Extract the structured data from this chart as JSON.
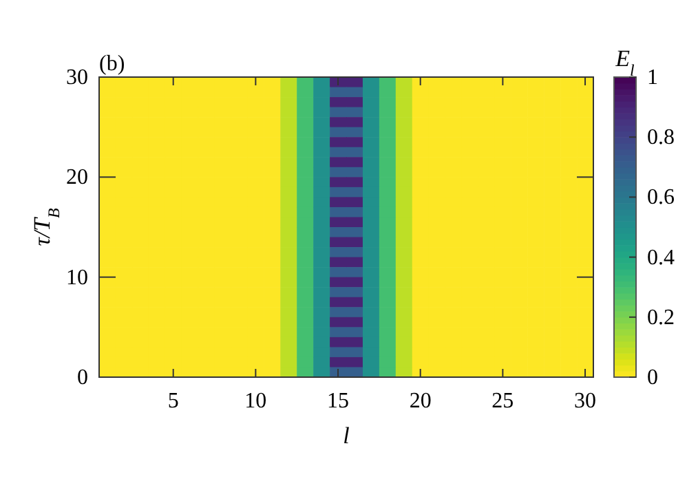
{
  "chart_data": {
    "type": "heatmap",
    "title": "(b)",
    "xlabel": "l",
    "ylabel": "τ/T$_{B}$",
    "clabel": "E$_{l}$",
    "categories": [
      null,
      null,
      null,
      null,
      "5",
      null,
      null,
      null,
      null,
      "10",
      null,
      null,
      null,
      null,
      "15",
      null,
      null,
      null,
      null,
      "20",
      null,
      null,
      null,
      null,
      "25",
      null,
      null,
      null,
      null,
      "30"
    ],
    "ylim": [
      0,
      30
    ],
    "yticks": [
      0,
      10,
      20,
      30
    ],
    "clim": [
      0,
      1
    ],
    "cticks": [
      0,
      0.2,
      0.4,
      0.6,
      0.8,
      1
    ],
    "cells": [
      [
        0,
        0,
        0,
        0,
        0,
        0,
        0,
        0,
        0,
        0,
        0,
        0.1,
        0.3,
        0.5,
        0.9,
        0.9,
        0.5,
        0.3,
        0.1,
        0,
        0,
        0,
        0,
        0,
        0,
        0,
        0,
        0,
        0,
        0
      ],
      [
        0,
        0,
        0,
        0,
        0,
        0,
        0,
        0,
        0,
        0,
        0,
        0.1,
        0.3,
        0.5,
        0.7,
        0.7,
        0.5,
        0.3,
        0.1,
        0,
        0,
        0,
        0,
        0,
        0,
        0,
        0,
        0,
        0,
        0
      ],
      [
        0,
        0,
        0,
        0,
        0,
        0,
        0,
        0,
        0,
        0,
        0,
        0.1,
        0.3,
        0.5,
        0.9,
        0.9,
        0.5,
        0.3,
        0.1,
        0,
        0,
        0,
        0,
        0,
        0,
        0,
        0,
        0,
        0,
        0
      ],
      [
        0,
        0,
        0,
        0,
        0,
        0,
        0,
        0,
        0,
        0,
        0,
        0.1,
        0.3,
        0.5,
        0.7,
        0.7,
        0.5,
        0.3,
        0.1,
        0,
        0,
        0,
        0,
        0,
        0,
        0,
        0,
        0,
        0,
        0
      ],
      [
        0,
        0,
        0,
        0,
        0,
        0,
        0,
        0,
        0,
        0,
        0,
        0.1,
        0.3,
        0.5,
        0.9,
        0.9,
        0.5,
        0.3,
        0.1,
        0,
        0,
        0,
        0,
        0,
        0,
        0,
        0,
        0,
        0,
        0
      ],
      [
        0,
        0,
        0,
        0,
        0,
        0,
        0,
        0,
        0,
        0,
        0,
        0.1,
        0.3,
        0.5,
        0.7,
        0.7,
        0.5,
        0.3,
        0.1,
        0,
        0,
        0,
        0,
        0,
        0,
        0,
        0,
        0,
        0,
        0
      ],
      [
        0,
        0,
        0,
        0,
        0,
        0,
        0,
        0,
        0,
        0,
        0,
        0.1,
        0.3,
        0.5,
        0.9,
        0.9,
        0.5,
        0.3,
        0.1,
        0,
        0,
        0,
        0,
        0,
        0,
        0,
        0,
        0,
        0,
        0
      ],
      [
        0,
        0,
        0,
        0,
        0,
        0,
        0,
        0,
        0,
        0,
        0,
        0.1,
        0.3,
        0.5,
        0.7,
        0.7,
        0.5,
        0.3,
        0.1,
        0,
        0,
        0,
        0,
        0,
        0,
        0,
        0,
        0,
        0,
        0
      ],
      [
        0,
        0,
        0,
        0,
        0,
        0,
        0,
        0,
        0,
        0,
        0,
        0.1,
        0.3,
        0.5,
        0.9,
        0.9,
        0.5,
        0.3,
        0.1,
        0,
        0,
        0,
        0,
        0,
        0,
        0,
        0,
        0,
        0,
        0
      ],
      [
        0,
        0,
        0,
        0,
        0,
        0,
        0,
        0,
        0,
        0,
        0,
        0.1,
        0.3,
        0.5,
        0.7,
        0.7,
        0.5,
        0.3,
        0.1,
        0,
        0,
        0,
        0,
        0,
        0,
        0,
        0,
        0,
        0,
        0
      ],
      [
        0,
        0,
        0,
        0,
        0,
        0,
        0,
        0,
        0,
        0,
        0,
        0.1,
        0.3,
        0.5,
        0.9,
        0.9,
        0.5,
        0.3,
        0.1,
        0,
        0,
        0,
        0,
        0,
        0,
        0,
        0,
        0,
        0,
        0
      ],
      [
        0,
        0,
        0,
        0,
        0,
        0,
        0,
        0,
        0,
        0,
        0,
        0.1,
        0.3,
        0.5,
        0.7,
        0.7,
        0.5,
        0.3,
        0.1,
        0,
        0,
        0,
        0,
        0,
        0,
        0,
        0,
        0,
        0,
        0
      ],
      [
        0,
        0,
        0,
        0,
        0,
        0,
        0,
        0,
        0,
        0,
        0,
        0.1,
        0.3,
        0.5,
        0.9,
        0.9,
        0.5,
        0.3,
        0.1,
        0,
        0,
        0,
        0,
        0,
        0,
        0,
        0,
        0,
        0,
        0
      ],
      [
        0,
        0,
        0,
        0,
        0,
        0,
        0,
        0,
        0,
        0,
        0,
        0.1,
        0.3,
        0.5,
        0.7,
        0.7,
        0.5,
        0.3,
        0.1,
        0,
        0,
        0,
        0,
        0,
        0,
        0,
        0,
        0,
        0,
        0
      ],
      [
        0,
        0,
        0,
        0,
        0,
        0,
        0,
        0,
        0,
        0,
        0,
        0.1,
        0.3,
        0.5,
        0.9,
        0.9,
        0.5,
        0.3,
        0.1,
        0,
        0,
        0,
        0,
        0,
        0,
        0,
        0,
        0,
        0,
        0
      ],
      [
        0,
        0,
        0,
        0,
        0,
        0,
        0,
        0,
        0,
        0,
        0,
        0.1,
        0.3,
        0.5,
        0.7,
        0.7,
        0.5,
        0.3,
        0.1,
        0,
        0,
        0,
        0,
        0,
        0,
        0,
        0,
        0,
        0,
        0
      ],
      [
        0,
        0,
        0,
        0,
        0,
        0,
        0,
        0,
        0,
        0,
        0,
        0.1,
        0.3,
        0.5,
        0.9,
        0.9,
        0.5,
        0.3,
        0.1,
        0,
        0,
        0,
        0,
        0,
        0,
        0,
        0,
        0,
        0,
        0
      ],
      [
        0,
        0,
        0,
        0,
        0,
        0,
        0,
        0,
        0,
        0,
        0,
        0.1,
        0.3,
        0.5,
        0.7,
        0.7,
        0.5,
        0.3,
        0.1,
        0,
        0,
        0,
        0,
        0,
        0,
        0,
        0,
        0,
        0,
        0
      ],
      [
        0,
        0,
        0,
        0,
        0,
        0,
        0,
        0,
        0,
        0,
        0,
        0.1,
        0.3,
        0.5,
        0.9,
        0.9,
        0.5,
        0.3,
        0.1,
        0,
        0,
        0,
        0,
        0,
        0,
        0,
        0,
        0,
        0,
        0
      ],
      [
        0,
        0,
        0,
        0,
        0,
        0,
        0,
        0,
        0,
        0,
        0,
        0.1,
        0.3,
        0.5,
        0.7,
        0.7,
        0.5,
        0.3,
        0.1,
        0,
        0,
        0,
        0,
        0,
        0,
        0,
        0,
        0,
        0,
        0
      ],
      [
        0,
        0,
        0,
        0,
        0,
        0,
        0,
        0,
        0,
        0,
        0,
        0.1,
        0.3,
        0.5,
        0.9,
        0.9,
        0.5,
        0.3,
        0.1,
        0,
        0,
        0,
        0,
        0,
        0,
        0,
        0,
        0,
        0,
        0
      ],
      [
        0,
        0,
        0,
        0,
        0,
        0,
        0,
        0,
        0,
        0,
        0,
        0.1,
        0.3,
        0.5,
        0.7,
        0.7,
        0.5,
        0.3,
        0.1,
        0,
        0,
        0,
        0,
        0,
        0,
        0,
        0,
        0,
        0,
        0
      ],
      [
        0,
        0,
        0,
        0,
        0,
        0,
        0,
        0,
        0,
        0,
        0,
        0.1,
        0.3,
        0.5,
        0.9,
        0.9,
        0.5,
        0.3,
        0.1,
        0,
        0,
        0,
        0,
        0,
        0,
        0,
        0,
        0,
        0,
        0
      ],
      [
        0,
        0,
        0,
        0,
        0,
        0,
        0,
        0,
        0,
        0,
        0,
        0.1,
        0.3,
        0.5,
        0.7,
        0.7,
        0.5,
        0.3,
        0.1,
        0,
        0,
        0,
        0,
        0,
        0,
        0,
        0,
        0,
        0,
        0
      ],
      [
        0,
        0,
        0,
        0,
        0,
        0,
        0,
        0,
        0,
        0,
        0,
        0.1,
        0.3,
        0.5,
        0.9,
        0.9,
        0.5,
        0.3,
        0.1,
        0,
        0,
        0,
        0,
        0,
        0,
        0,
        0,
        0,
        0,
        0
      ],
      [
        0,
        0,
        0,
        0,
        0,
        0,
        0,
        0,
        0,
        0,
        0,
        0.1,
        0.3,
        0.5,
        0.7,
        0.7,
        0.5,
        0.3,
        0.1,
        0,
        0,
        0,
        0,
        0,
        0,
        0,
        0,
        0,
        0,
        0
      ],
      [
        0,
        0,
        0,
        0,
        0,
        0,
        0,
        0,
        0,
        0,
        0,
        0.1,
        0.3,
        0.5,
        0.9,
        0.9,
        0.5,
        0.3,
        0.1,
        0,
        0,
        0,
        0,
        0,
        0,
        0,
        0,
        0,
        0,
        0
      ],
      [
        0,
        0,
        0,
        0,
        0,
        0,
        0,
        0,
        0,
        0,
        0,
        0.1,
        0.3,
        0.5,
        0.7,
        0.7,
        0.5,
        0.3,
        0.1,
        0,
        0,
        0,
        0,
        0,
        0,
        0,
        0,
        0,
        0,
        0
      ],
      [
        0,
        0,
        0,
        0,
        0,
        0,
        0,
        0,
        0,
        0,
        0,
        0.1,
        0.3,
        0.5,
        0.9,
        0.9,
        0.5,
        0.3,
        0.1,
        0,
        0,
        0,
        0,
        0,
        0,
        0,
        0,
        0,
        0,
        0
      ],
      [
        0,
        0,
        0,
        0,
        0,
        0,
        0,
        0,
        0,
        0,
        0,
        0.1,
        0.3,
        0.5,
        0.7,
        0.7,
        0.5,
        0.3,
        0.1,
        0,
        0,
        0,
        0,
        0,
        0,
        0,
        0,
        0,
        0,
        0
      ]
    ]
  }
}
